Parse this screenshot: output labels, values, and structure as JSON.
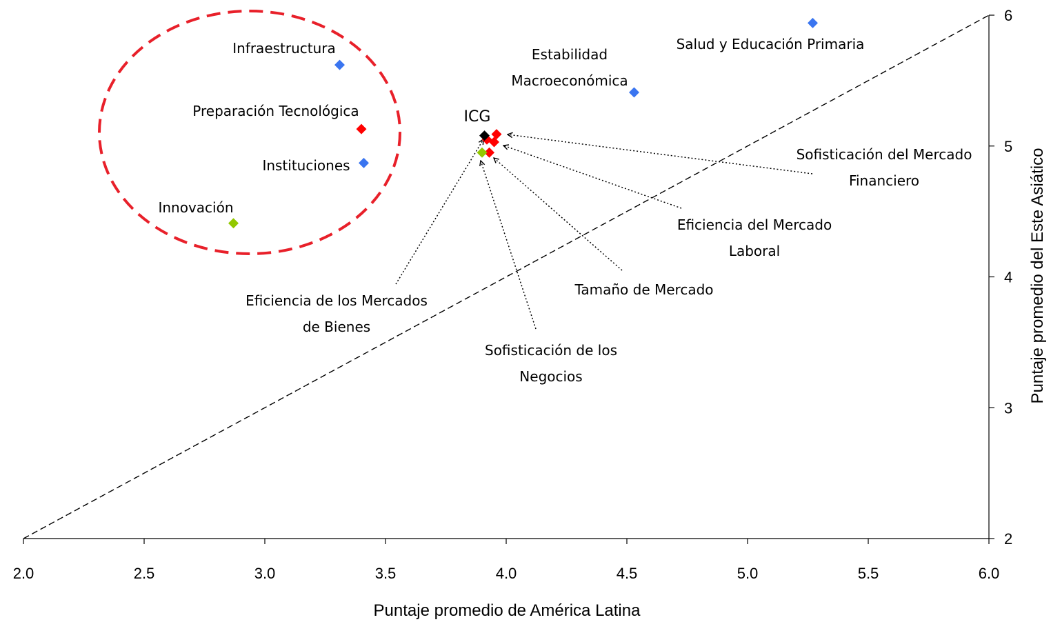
{
  "chart_data": {
    "type": "scatter",
    "xlabel": "Puntaje promedio de América Latina",
    "ylabel": "Puntaje promedio del Este Asiático",
    "xlim": [
      2.0,
      6.0
    ],
    "ylim": [
      2,
      6
    ],
    "x_ticks": [
      "2.0",
      "2.5",
      "3.0",
      "3.5",
      "4.0",
      "4.5",
      "5.0",
      "5.5",
      "6.0"
    ],
    "y_ticks": [
      "2",
      "3",
      "4",
      "5",
      "6"
    ],
    "y_axis_side": "right",
    "grid": false,
    "reference_line": {
      "from": [
        2,
        2
      ],
      "to": [
        6,
        6
      ],
      "style": "dashed"
    },
    "colors": {
      "blue": "#3a75f0",
      "red": "#ff0000",
      "green": "#92c800",
      "black": "#000000",
      "ellipse": "#e8202a"
    },
    "points": [
      {
        "name": "Infraestructura",
        "label_lines": [
          "Infraestructura"
        ],
        "x": 3.31,
        "y": 5.62,
        "color": "blue"
      },
      {
        "name": "Preparación Tecnológica",
        "label_lines": [
          "Preparación Tecnológica"
        ],
        "x": 3.4,
        "y": 5.13,
        "color": "red"
      },
      {
        "name": "Instituciones",
        "label_lines": [
          "Instituciones"
        ],
        "x": 3.41,
        "y": 4.87,
        "color": "blue"
      },
      {
        "name": "Innovación",
        "label_lines": [
          "Innovación"
        ],
        "x": 2.87,
        "y": 4.41,
        "color": "green"
      },
      {
        "name": "Estabilidad Macroeconómica",
        "label_lines": [
          "Estabilidad",
          "Macroeconómica"
        ],
        "x": 4.53,
        "y": 5.41,
        "color": "blue"
      },
      {
        "name": "Salud y Educación Primaria",
        "label_lines": [
          "Salud y Educación Primaria"
        ],
        "x": 5.27,
        "y": 5.94,
        "color": "blue"
      },
      {
        "name": "ICG",
        "label_lines": [
          "ICG"
        ],
        "x": 3.91,
        "y": 5.08,
        "color": "black"
      },
      {
        "name": "Sofisticación del Mercado Financiero",
        "label_lines": [
          "Sofisticación del Mercado",
          "Financiero"
        ],
        "x": 3.96,
        "y": 5.09,
        "color": "red"
      },
      {
        "name": "Eficiencia del Mercado Laboral",
        "label_lines": [
          "Eficiencia del Mercado",
          "Laboral"
        ],
        "x": 3.95,
        "y": 5.03,
        "color": "red"
      },
      {
        "name": "Tamaño de Mercado",
        "label_lines": [
          "Tamaño de Mercado"
        ],
        "x": 3.93,
        "y": 4.95,
        "color": "red"
      },
      {
        "name": "Eficiencia de los Mercados de Bienes",
        "label_lines": [
          "Eficiencia de los Mercados",
          "de Bienes"
        ],
        "x": 3.92,
        "y": 5.05,
        "color": "red"
      },
      {
        "name": "Sofisticación de los Negocios",
        "label_lines": [
          "Sofisticación de los",
          "Negocios"
        ],
        "x": 3.9,
        "y": 4.95,
        "color": "green"
      }
    ]
  }
}
